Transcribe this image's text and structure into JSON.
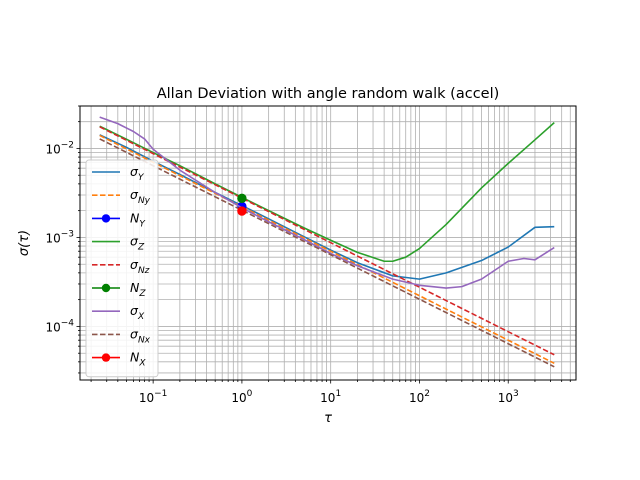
{
  "chart_data": {
    "type": "line",
    "title": "Allan Deviation with angle random walk (accel)",
    "xlabel": "τ",
    "ylabel": "σ(τ)",
    "xscale": "log",
    "yscale": "log",
    "xlim": [
      0.015,
      5800
    ],
    "ylim": [
      2.5e-05,
      0.03
    ],
    "grid": true,
    "legend_position": "center-left",
    "x_ticks": [
      {
        "base": "10",
        "exp": "−1",
        "value": 0.1
      },
      {
        "base": "10",
        "exp": "0",
        "value": 1
      },
      {
        "base": "10",
        "exp": "1",
        "value": 10
      },
      {
        "base": "10",
        "exp": "2",
        "value": 100
      },
      {
        "base": "10",
        "exp": "3",
        "value": 1000
      }
    ],
    "y_ticks": [
      {
        "base": "10",
        "exp": "−4",
        "value": 0.0001
      },
      {
        "base": "10",
        "exp": "−3",
        "value": 0.001
      },
      {
        "base": "10",
        "exp": "−2",
        "value": 0.01
      }
    ],
    "series": [
      {
        "name": "σ",
        "sub": "Y",
        "kind": "solid",
        "color": "#1f77b4",
        "x": [
          0.025,
          0.05,
          0.1,
          0.2,
          0.5,
          1,
          2,
          5,
          10,
          20,
          50,
          100,
          200,
          500,
          1000,
          2000,
          3300
        ],
        "y": [
          0.0142,
          0.0103,
          0.0072,
          0.0051,
          0.0032,
          0.00228,
          0.00162,
          0.00102,
          0.00072,
          0.00052,
          0.00037,
          0.00034,
          0.0004,
          0.00055,
          0.00078,
          0.0013,
          0.00132
        ]
      },
      {
        "name": "σ",
        "sub": "Ny",
        "kind": "dashed",
        "color": "#ff7f0e",
        "x": [
          0.025,
          3300
        ],
        "y": [
          0.014,
          3.85e-05
        ]
      },
      {
        "name": "N",
        "sub": "Y",
        "kind": "marker",
        "color": "#0000ff",
        "x": [
          1
        ],
        "y": [
          0.00223
        ]
      },
      {
        "name": "σ",
        "sub": "Z",
        "kind": "solid",
        "color": "#2ca02c",
        "x": [
          0.025,
          0.05,
          0.1,
          0.2,
          0.5,
          1,
          2,
          5,
          10,
          20,
          40,
          50,
          70,
          100,
          200,
          500,
          1000,
          2000,
          3300
        ],
        "y": [
          0.0178,
          0.0127,
          0.009,
          0.0064,
          0.004,
          0.00282,
          0.002,
          0.00128,
          0.00093,
          0.00068,
          0.00054,
          0.00054,
          0.0006,
          0.00075,
          0.0014,
          0.0036,
          0.0068,
          0.0125,
          0.0195
        ]
      },
      {
        "name": "σ",
        "sub": "Nz",
        "kind": "dashed",
        "color": "#d62728",
        "x": [
          0.025,
          3300
        ],
        "y": [
          0.0175,
          4.8e-05
        ]
      },
      {
        "name": "N",
        "sub": "Z",
        "kind": "marker",
        "color": "#008000",
        "x": [
          1
        ],
        "y": [
          0.00275
        ]
      },
      {
        "name": "σ",
        "sub": "X",
        "kind": "solid",
        "color": "#9467bd",
        "x": [
          0.025,
          0.04,
          0.06,
          0.08,
          0.1,
          0.2,
          0.5,
          1,
          2,
          5,
          10,
          20,
          50,
          100,
          200,
          300,
          500,
          1000,
          1500,
          2000,
          3300
        ],
        "y": [
          0.0225,
          0.019,
          0.0155,
          0.0128,
          0.0098,
          0.0057,
          0.0032,
          0.00215,
          0.0015,
          0.00095,
          0.00066,
          0.00048,
          0.00034,
          0.00029,
          0.00027,
          0.00028,
          0.00034,
          0.00054,
          0.00058,
          0.00056,
          0.00077
        ]
      },
      {
        "name": "σ",
        "sub": "Nx",
        "kind": "dashed",
        "color": "#8c564b",
        "x": [
          0.025,
          3300
        ],
        "y": [
          0.0128,
          3.52e-05
        ]
      },
      {
        "name": "N",
        "sub": "X",
        "kind": "marker",
        "color": "#ff0000",
        "x": [
          1
        ],
        "y": [
          0.00198
        ]
      }
    ]
  }
}
